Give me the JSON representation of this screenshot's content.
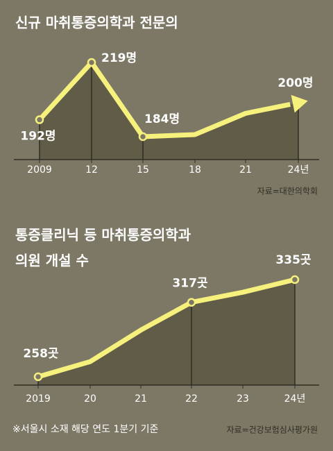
{
  "chart_data": [
    {
      "type": "line",
      "title": [
        "신규 마취통증의학과 전문의"
      ],
      "categories": [
        "2009",
        "12",
        "15",
        "18",
        "21",
        "24년"
      ],
      "values": [
        192,
        219,
        184,
        185,
        195,
        200
      ],
      "value_labels": [
        "192명",
        "219명",
        "184명",
        null,
        null,
        "200명"
      ],
      "color": "#f6f07c",
      "arrow": true,
      "source": "자료=대한의학회"
    },
    {
      "type": "line",
      "title": [
        "통증클리닉 등 마취통증의학과",
        "의원 개설 수"
      ],
      "categories": [
        "2019",
        "20",
        "21",
        "22",
        "23",
        "24년"
      ],
      "values": [
        258,
        270,
        295,
        317,
        325,
        335
      ],
      "value_labels": [
        "258곳",
        null,
        null,
        "317곳",
        null,
        "335곳"
      ],
      "color": "#f6f07c",
      "arrow": false,
      "source": "자료=건강보험심사평가원",
      "footnote": "※서울시 소재 해당 연도 1분기 기준"
    }
  ]
}
